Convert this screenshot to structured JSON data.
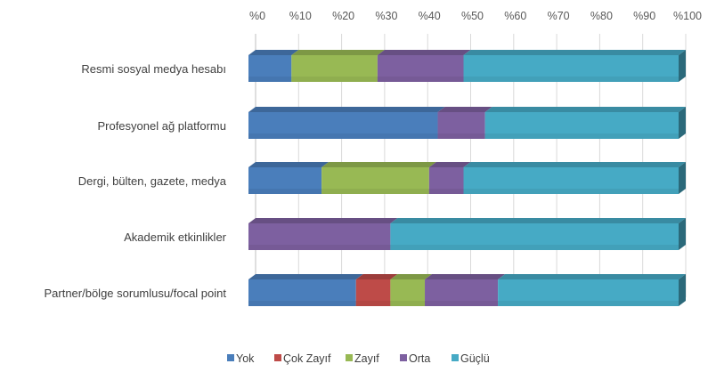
{
  "chart_data": {
    "type": "bar",
    "orientation": "horizontal",
    "stacked": true,
    "percent": true,
    "xaxis_position": "top",
    "xlim": [
      0,
      100
    ],
    "ticks": [
      "%0",
      "%10",
      "%20",
      "%30",
      "%40",
      "%50",
      "%60",
      "%70",
      "%80",
      "%90",
      "%100"
    ],
    "grid": true,
    "legend_position": "bottom",
    "categories": [
      "Resmi sosyal medya hesabı",
      "Profesyonel ağ platformu",
      "Dergi, bülten, gazete, medya",
      "Akademik etkinlikler",
      "Partner/bölge sorumlusu/focal point"
    ],
    "series": [
      {
        "name": "Yok",
        "color": "#4a7ebb",
        "values": [
          10,
          44,
          17,
          0,
          25
        ]
      },
      {
        "name": "Çok Zayıf",
        "color": "#be4b48",
        "values": [
          0,
          0,
          0,
          0,
          8
        ]
      },
      {
        "name": "Zayıf",
        "color": "#98b954",
        "values": [
          20,
          0,
          25,
          0,
          8
        ]
      },
      {
        "name": "Orta",
        "color": "#7d60a0",
        "values": [
          20,
          11,
          8,
          33,
          17
        ]
      },
      {
        "name": "Güçlü",
        "color": "#46aac5",
        "values": [
          50,
          45,
          50,
          67,
          42
        ]
      }
    ]
  }
}
